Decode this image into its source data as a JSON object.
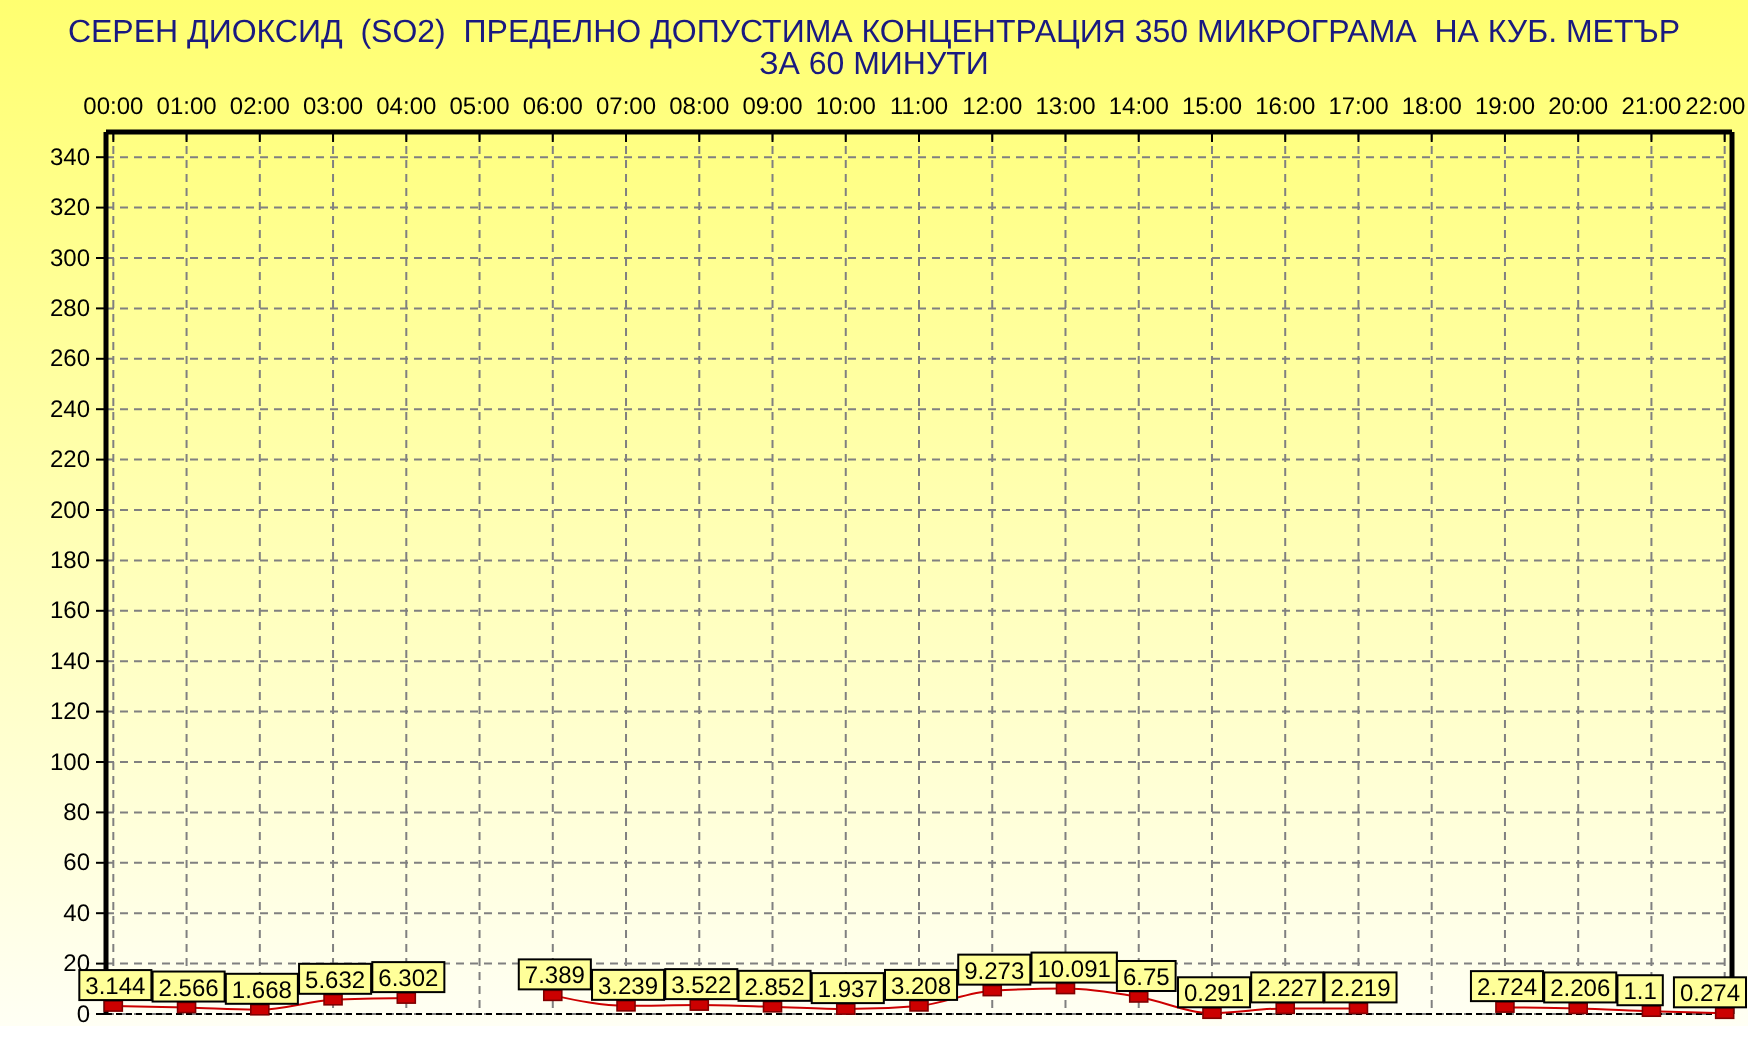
{
  "chart_data": {
    "type": "line",
    "title": "СЕРЕН ДИОКСИД  (SO2)  ПРЕДЕЛНО ДОПУСТИМА КОНЦЕНТРАЦИЯ 350 МИКРОГРАМА  НА КУБ. МЕТЪР",
    "subtitle": "ЗА 60 МИНУТИ",
    "x": [
      0,
      1,
      2,
      3,
      4,
      5,
      6,
      7,
      8,
      9,
      10,
      11,
      12,
      13,
      14,
      15,
      16,
      17,
      18,
      19,
      20,
      21,
      22
    ],
    "values": [
      3.144,
      2.566,
      1.668,
      5.632,
      6.302,
      null,
      7.389,
      3.239,
      3.522,
      2.852,
      1.937,
      3.208,
      9.273,
      10.091,
      6.75,
      0.291,
      2.227,
      2.219,
      null,
      2.724,
      2.206,
      1.1,
      0.274
    ],
    "color": "#cc0000",
    "xlim": [
      -0.1,
      22.1
    ],
    "xticks": [
      {
        "value": 0,
        "label": "00:00"
      },
      {
        "value": 1,
        "label": "01:00"
      },
      {
        "value": 2,
        "label": "02:00"
      },
      {
        "value": 3,
        "label": "03:00"
      },
      {
        "value": 4,
        "label": "04:00"
      },
      {
        "value": 5,
        "label": "05:00"
      },
      {
        "value": 6,
        "label": "06:00"
      },
      {
        "value": 7,
        "label": "07:00"
      },
      {
        "value": 8,
        "label": "08:00"
      },
      {
        "value": 9,
        "label": "09:00"
      },
      {
        "value": 10,
        "label": "10:00"
      },
      {
        "value": 11,
        "label": "11:00"
      },
      {
        "value": 12,
        "label": "12:00"
      },
      {
        "value": 13,
        "label": "13:00"
      },
      {
        "value": 14,
        "label": "14:00"
      },
      {
        "value": 15,
        "label": "15:00"
      },
      {
        "value": 16,
        "label": "16:00"
      },
      {
        "value": 17,
        "label": "17:00"
      },
      {
        "value": 18,
        "label": "18:00"
      },
      {
        "value": 19,
        "label": "19:00"
      },
      {
        "value": 20,
        "label": "20:00"
      },
      {
        "value": 21,
        "label": "21:00"
      },
      {
        "value": 22,
        "label": "22:00"
      }
    ],
    "ylim": [
      0,
      350
    ],
    "yticks": [
      0,
      20,
      40,
      60,
      80,
      100,
      120,
      140,
      160,
      180,
      200,
      220,
      240,
      260,
      280,
      300,
      320,
      340
    ],
    "grid": true,
    "marker": "square",
    "line_style": "solid",
    "data_labels": true
  }
}
